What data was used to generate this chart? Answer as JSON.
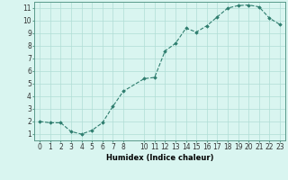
{
  "x": [
    0,
    1,
    2,
    3,
    4,
    5,
    6,
    7,
    8,
    10,
    11,
    12,
    13,
    14,
    15,
    16,
    17,
    18,
    19,
    20,
    21,
    22,
    23
  ],
  "y": [
    2.0,
    1.9,
    1.9,
    1.2,
    1.0,
    1.3,
    1.9,
    3.2,
    4.4,
    5.4,
    5.5,
    7.6,
    8.2,
    9.4,
    9.1,
    9.6,
    10.3,
    11.0,
    11.2,
    11.25,
    11.1,
    10.2,
    9.7
  ],
  "line_color": "#2e7d6e",
  "marker": "D",
  "markersize": 1.8,
  "linewidth": 0.8,
  "linestyle": "--",
  "bg_color": "#d9f5f0",
  "grid_color": "#b0ddd5",
  "xlabel": "Humidex (Indice chaleur)",
  "xlabel_fontsize": 6,
  "xlabel_weight": "bold",
  "ylabel_ticks": [
    1,
    2,
    3,
    4,
    5,
    6,
    7,
    8,
    9,
    10,
    11
  ],
  "xticks": [
    0,
    1,
    2,
    3,
    4,
    5,
    6,
    7,
    8,
    10,
    11,
    12,
    13,
    14,
    15,
    16,
    17,
    18,
    19,
    20,
    21,
    22,
    23
  ],
  "xlim": [
    -0.5,
    23.5
  ],
  "ylim": [
    0.5,
    11.5
  ],
  "tick_fontsize": 5.5,
  "spine_color": "#5a9a8a",
  "tick_color": "#5a9a8a",
  "label_color": "#333333"
}
